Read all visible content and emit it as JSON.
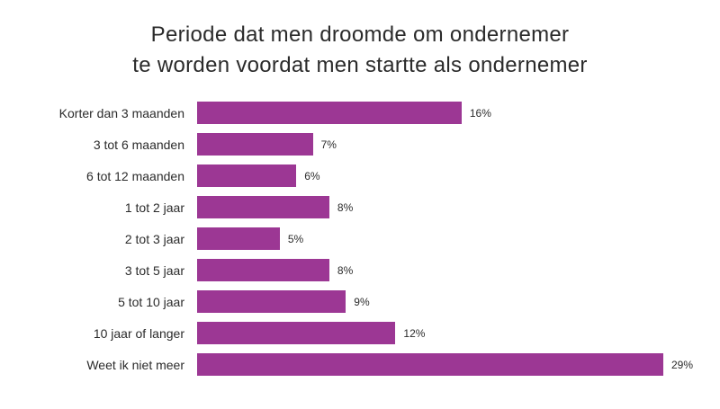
{
  "title": {
    "line1": "Periode dat men droomde om ondernemer",
    "line2": "te worden voordat men startte als ondernemer"
  },
  "chart_data": {
    "type": "bar",
    "orientation": "horizontal",
    "title": "Periode dat men droomde om ondernemer te worden voordat men startte als ondernemer",
    "categories": [
      "Korter dan 3 maanden",
      "3 tot 6 maanden",
      "6 tot 12 maanden",
      "1 tot 2 jaar",
      "2 tot 3 jaar",
      "3 tot 5 jaar",
      "5 tot 10 jaar",
      "10 jaar of langer",
      "Weet ik niet meer"
    ],
    "values": [
      16,
      7,
      6,
      8,
      5,
      8,
      9,
      12,
      29
    ],
    "value_suffix": "%",
    "xlabel": "",
    "ylabel": "",
    "xlim": [
      0,
      30
    ],
    "grid": false,
    "legend": false,
    "bar_color": "#9c3794",
    "background_color": "#ffffff",
    "text_color": "#2b2b2b"
  }
}
